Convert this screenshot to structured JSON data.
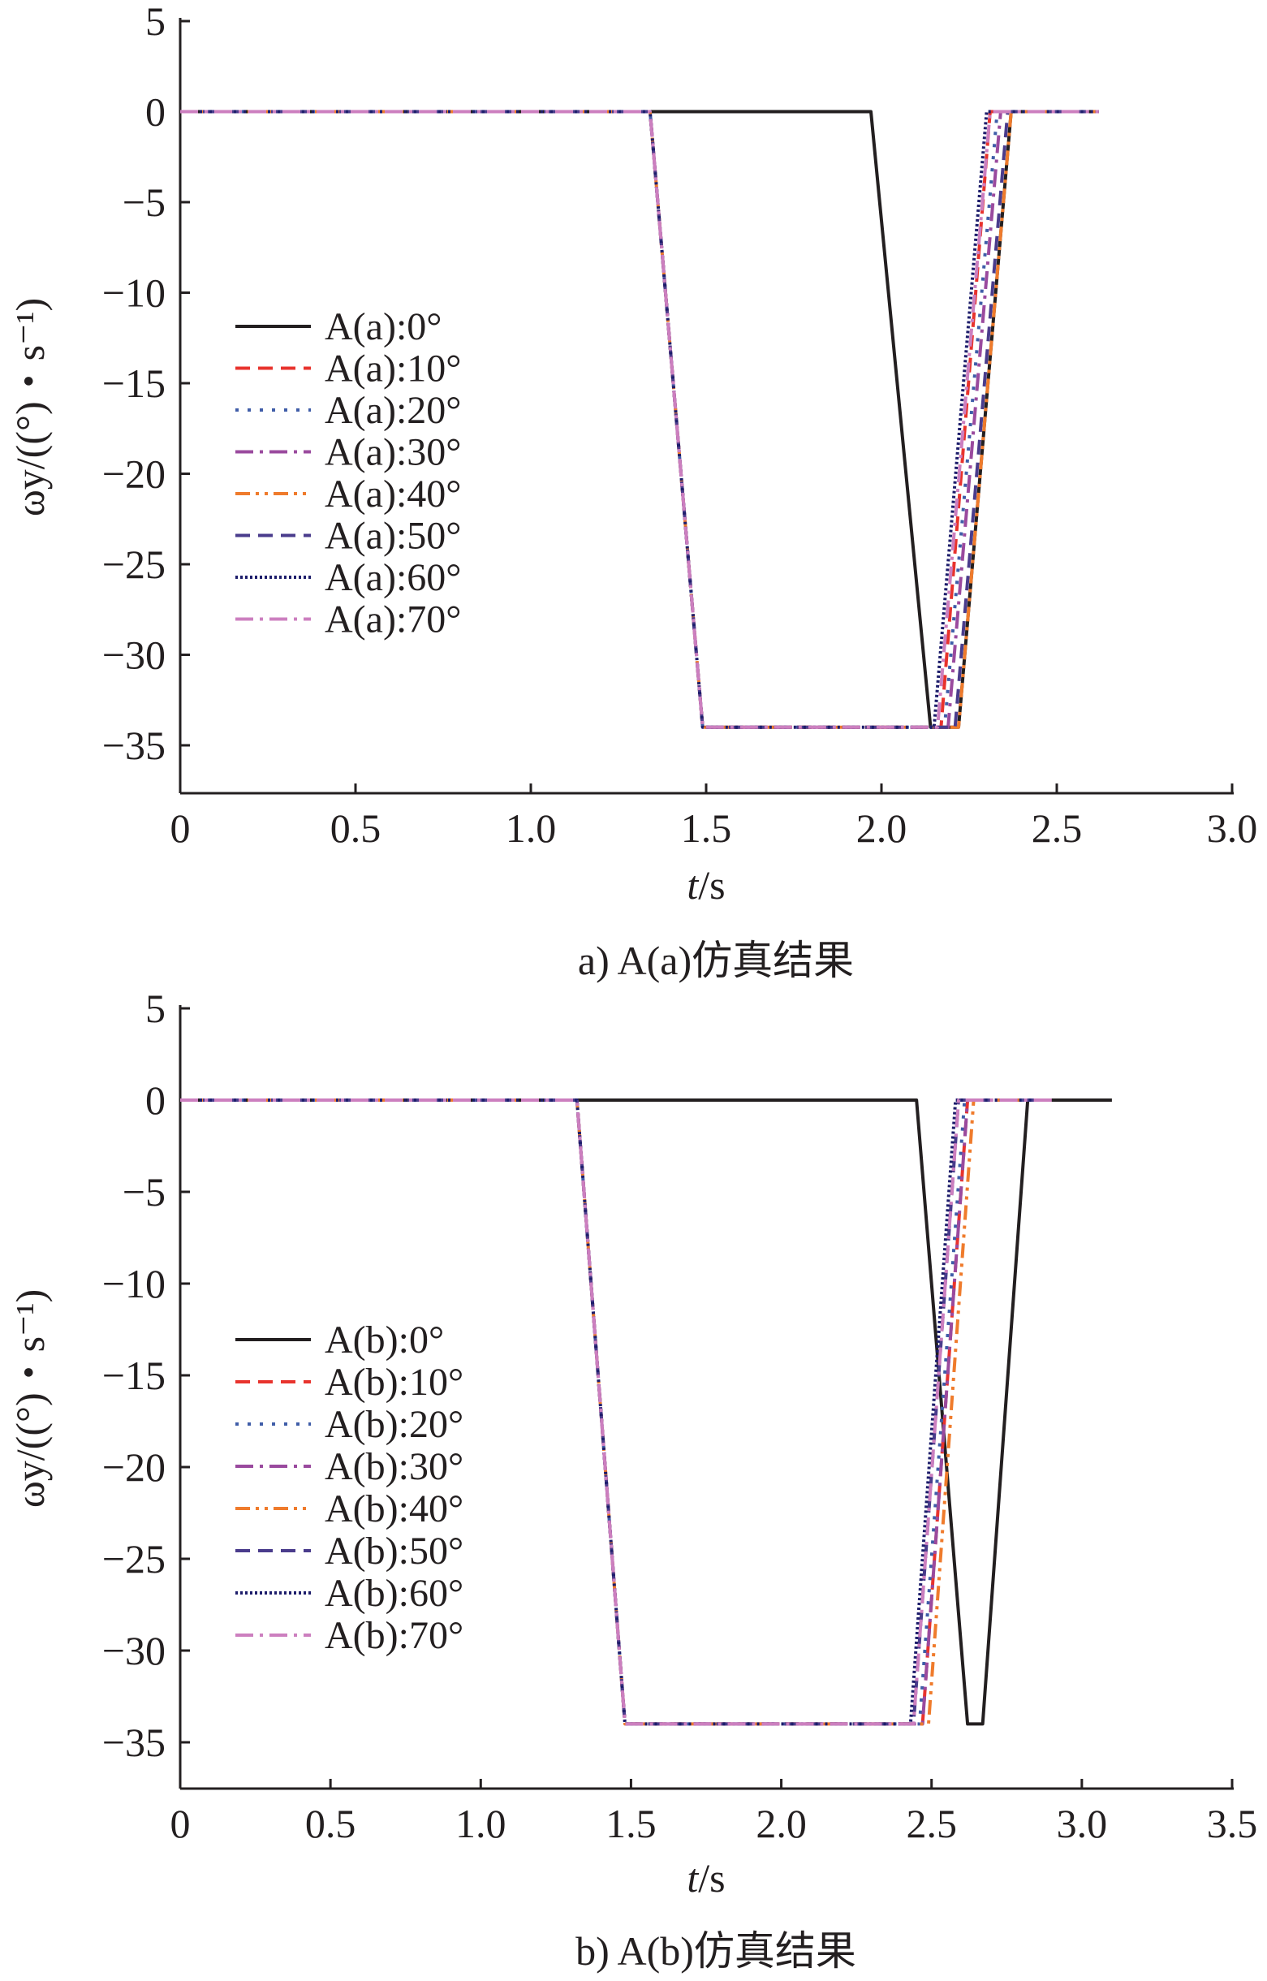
{
  "chart_data": [
    {
      "type": "line",
      "caption": "a) A(a)仿真结果",
      "xlabel": "t/s",
      "ylabel": "ωy/((°)・s⁻¹)",
      "xlim": [
        0,
        3.0
      ],
      "ylim": [
        -38,
        5
      ],
      "xticks": [
        "0",
        "0.5",
        "1.0",
        "1.5",
        "2.0",
        "2.5",
        "3.0"
      ],
      "yticks": [
        "5",
        "0",
        "−5",
        "−10",
        "−15",
        "−20",
        "−25",
        "−30",
        "−35"
      ],
      "legend_position": "center-left",
      "grid": false,
      "series": [
        {
          "name": "A(a):0°",
          "color": "#231f20",
          "dash": "solid",
          "x": [
            0,
            1.97,
            2.14,
            2.22,
            2.37,
            2.62
          ],
          "y": [
            0,
            0,
            -34,
            -34,
            0,
            0
          ]
        },
        {
          "name": "A(a):10°",
          "color": "#e8332d",
          "dash": "dash",
          "x": [
            0,
            1.34,
            1.49,
            2.17,
            2.31,
            2.62
          ],
          "y": [
            0,
            0,
            -34,
            -34,
            0,
            0
          ]
        },
        {
          "name": "A(a):20°",
          "color": "#3f5da8",
          "dash": "dot",
          "x": [
            0,
            1.34,
            1.49,
            2.18,
            2.33,
            2.62
          ],
          "y": [
            0,
            0,
            -34,
            -34,
            0,
            0
          ]
        },
        {
          "name": "A(a):30°",
          "color": "#9a4a9e",
          "dash": "dashdot",
          "x": [
            0,
            1.34,
            1.49,
            2.19,
            2.34,
            2.62
          ],
          "y": [
            0,
            0,
            -34,
            -34,
            0,
            0
          ]
        },
        {
          "name": "A(a):40°",
          "color": "#ef7b2c",
          "dash": "dashdotdot",
          "x": [
            0,
            1.34,
            1.49,
            2.22,
            2.37,
            2.62
          ],
          "y": [
            0,
            0,
            -34,
            -34,
            0,
            0
          ]
        },
        {
          "name": "A(a):50°",
          "color": "#4a3c8c",
          "dash": "dash",
          "x": [
            0,
            1.34,
            1.49,
            2.21,
            2.36,
            2.62
          ],
          "y": [
            0,
            0,
            -34,
            -34,
            0,
            0
          ]
        },
        {
          "name": "A(a):60°",
          "color": "#1d1d6b",
          "dash": "densedot",
          "x": [
            0,
            1.34,
            1.49,
            2.15,
            2.3,
            2.62
          ],
          "y": [
            0,
            0,
            -34,
            -34,
            0,
            0
          ]
        },
        {
          "name": "A(a):70°",
          "color": "#cc7fbf",
          "dash": "dashdot",
          "x": [
            0,
            1.34,
            1.49,
            2.16,
            2.31,
            2.62
          ],
          "y": [
            0,
            0,
            -34,
            -34,
            0,
            0
          ]
        }
      ]
    },
    {
      "type": "line",
      "caption": "b) A(b)仿真结果",
      "xlabel": "t/s",
      "ylabel": "ωy/((°)・s⁻¹)",
      "xlim": [
        0,
        3.5
      ],
      "ylim": [
        -38,
        5
      ],
      "xticks": [
        "0",
        "0.5",
        "1.0",
        "1.5",
        "2.0",
        "2.5",
        "3.0",
        "3.5"
      ],
      "yticks": [
        "5",
        "0",
        "−5",
        "−10",
        "−15",
        "−20",
        "−25",
        "−30",
        "−35"
      ],
      "legend_position": "center-left",
      "grid": false,
      "series": [
        {
          "name": "A(b):0°",
          "color": "#231f20",
          "dash": "solid",
          "x": [
            0,
            2.45,
            2.62,
            2.67,
            2.82,
            3.1
          ],
          "y": [
            0,
            0,
            -34,
            -34,
            0,
            0
          ]
        },
        {
          "name": "A(b):10°",
          "color": "#e8332d",
          "dash": "dash",
          "x": [
            0,
            1.32,
            1.48,
            2.47,
            2.62,
            2.9
          ],
          "y": [
            0,
            0,
            -34,
            -34,
            0,
            0
          ]
        },
        {
          "name": "A(b):20°",
          "color": "#3f5da8",
          "dash": "dot",
          "x": [
            0,
            1.32,
            1.48,
            2.46,
            2.61,
            2.9
          ],
          "y": [
            0,
            0,
            -34,
            -34,
            0,
            0
          ]
        },
        {
          "name": "A(b):30°",
          "color": "#9a4a9e",
          "dash": "dashdot",
          "x": [
            0,
            1.32,
            1.48,
            2.47,
            2.62,
            2.9
          ],
          "y": [
            0,
            0,
            -34,
            -34,
            0,
            0
          ]
        },
        {
          "name": "A(b):40°",
          "color": "#ef7b2c",
          "dash": "dashdotdot",
          "x": [
            0,
            1.32,
            1.48,
            2.49,
            2.64,
            2.9
          ],
          "y": [
            0,
            0,
            -34,
            -34,
            0,
            0
          ]
        },
        {
          "name": "A(b):50°",
          "color": "#4a3c8c",
          "dash": "dash",
          "x": [
            0,
            1.32,
            1.48,
            2.44,
            2.59,
            2.9
          ],
          "y": [
            0,
            0,
            -34,
            -34,
            0,
            0
          ]
        },
        {
          "name": "A(b):60°",
          "color": "#1d1d6b",
          "dash": "densedot",
          "x": [
            0,
            1.32,
            1.48,
            2.43,
            2.58,
            2.9
          ],
          "y": [
            0,
            0,
            -34,
            -34,
            0,
            0
          ]
        },
        {
          "name": "A(b):70°",
          "color": "#cc7fbf",
          "dash": "dashdot",
          "x": [
            0,
            1.32,
            1.48,
            2.44,
            2.59,
            2.9
          ],
          "y": [
            0,
            0,
            -34,
            -34,
            0,
            0
          ]
        }
      ]
    }
  ]
}
